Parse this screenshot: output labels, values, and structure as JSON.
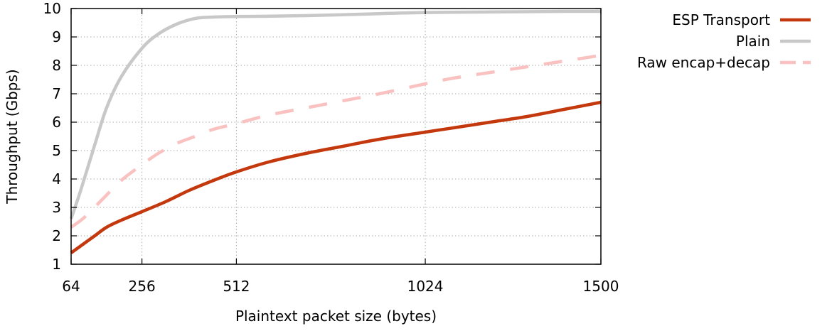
{
  "chart_data": {
    "type": "line",
    "xlabel": "Plaintext packet size (bytes)",
    "ylabel": "Throughput (Gbps)",
    "xlim": [
      64,
      1500
    ],
    "ylim": [
      1,
      10
    ],
    "xticks": [
      64,
      256,
      512,
      1024,
      1500
    ],
    "yticks": [
      1,
      2,
      3,
      4,
      5,
      6,
      7,
      8,
      9,
      10
    ],
    "grid": true,
    "legend_position": "top-right-outside",
    "series": [
      {
        "name": "ESP Transport",
        "color": "#c4380e",
        "style": "solid",
        "x": [
          64,
          96,
          128,
          160,
          200,
          256,
          320,
          384,
          450,
          512,
          600,
          700,
          800,
          900,
          1024,
          1100,
          1200,
          1300,
          1400,
          1500
        ],
        "y": [
          1.4,
          1.7,
          2.0,
          2.3,
          2.55,
          2.85,
          3.2,
          3.6,
          3.95,
          4.25,
          4.6,
          4.9,
          5.15,
          5.4,
          5.65,
          5.8,
          6.0,
          6.2,
          6.45,
          6.7
        ]
      },
      {
        "name": "Plain",
        "color": "#c8c8c8",
        "style": "solid",
        "x": [
          64,
          90,
          128,
          160,
          200,
          256,
          300,
          350,
          400,
          450,
          512,
          600,
          700,
          800,
          900,
          1024,
          1200,
          1400,
          1500
        ],
        "y": [
          2.6,
          3.6,
          5.2,
          6.5,
          7.6,
          8.6,
          9.1,
          9.45,
          9.65,
          9.7,
          9.72,
          9.73,
          9.75,
          9.78,
          9.82,
          9.86,
          9.88,
          9.9,
          9.9
        ]
      },
      {
        "name": "Raw encap+decap",
        "color": "#f9c2c0",
        "style": "dashed",
        "x": [
          64,
          100,
          150,
          200,
          256,
          300,
          350,
          400,
          450,
          512,
          600,
          700,
          800,
          900,
          1024,
          1100,
          1200,
          1300,
          1400,
          1500
        ],
        "y": [
          2.3,
          2.65,
          3.3,
          3.95,
          4.5,
          4.9,
          5.25,
          5.5,
          5.75,
          5.95,
          6.25,
          6.5,
          6.75,
          7.0,
          7.35,
          7.55,
          7.75,
          7.95,
          8.15,
          8.35
        ]
      }
    ]
  }
}
